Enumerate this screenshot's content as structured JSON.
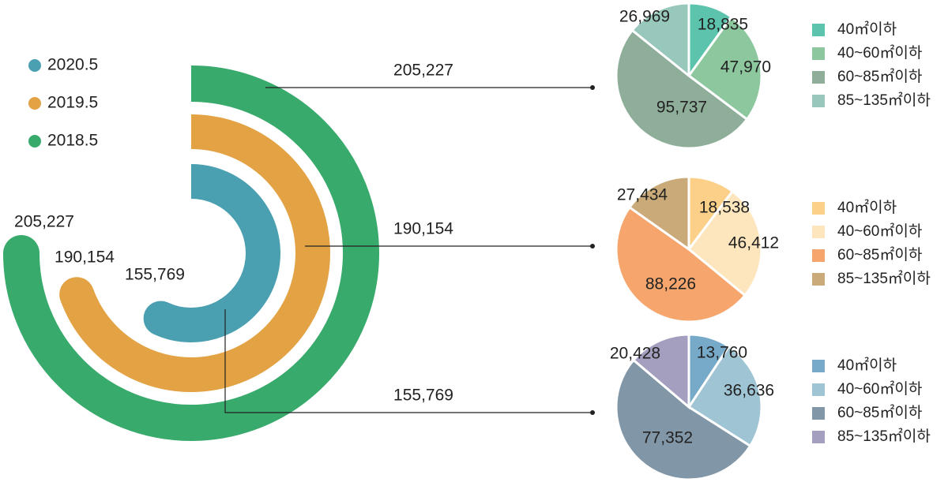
{
  "chart_data": [
    {
      "type": "radial-bar",
      "legend": [
        {
          "label": "2020.5",
          "color": "#4aa0b0"
        },
        {
          "label": "2019.5",
          "color": "#e3a244"
        },
        {
          "label": "2018.5",
          "color": "#38aa6c"
        }
      ],
      "max_value": 205227,
      "series": [
        {
          "name": "2018.5",
          "value": 205227,
          "label": "205,227",
          "color": "#38aa6c"
        },
        {
          "name": "2019.5",
          "value": 190154,
          "label": "190,154",
          "color": "#e3a244"
        },
        {
          "name": "2020.5",
          "value": 155769,
          "label": "155,769",
          "color": "#4aa0b0"
        }
      ]
    },
    {
      "type": "pie",
      "total_label": "205,227",
      "legend_position": "right",
      "slices": [
        {
          "category": "40㎡이하",
          "value": 18835,
          "label": "18,835",
          "color": "#5cc4ac"
        },
        {
          "category": "40~60㎡이하",
          "value": 47970,
          "label": "47,970",
          "color": "#8cc79e"
        },
        {
          "category": "60~85㎡이하",
          "value": 95737,
          "label": "95,737",
          "color": "#8eae99"
        },
        {
          "category": "85~135㎡이하",
          "value": 26969,
          "label": "26,969",
          "color": "#98c7bb"
        }
      ]
    },
    {
      "type": "pie",
      "total_label": "190,154",
      "legend_position": "right",
      "slices": [
        {
          "category": "40㎡이하",
          "value": 18538,
          "label": "18,538",
          "color": "#fcd088"
        },
        {
          "category": "40~60㎡이하",
          "value": 46412,
          "label": "46,412",
          "color": "#fde6bd"
        },
        {
          "category": "60~85㎡이하",
          "value": 88226,
          "label": "88,226",
          "color": "#f6a66d"
        },
        {
          "category": "85~135㎡이하",
          "value": 27434,
          "label": "27,434",
          "color": "#c9aa78"
        }
      ]
    },
    {
      "type": "pie",
      "total_label": "155,769",
      "legend_position": "right",
      "slices": [
        {
          "category": "40㎡이하",
          "value": 13760,
          "label": "13,760",
          "color": "#77aac8"
        },
        {
          "category": "40~60㎡이하",
          "value": 36636,
          "label": "36,636",
          "color": "#9fc4d4"
        },
        {
          "category": "60~85㎡이하",
          "value": 77352,
          "label": "77,352",
          "color": "#8196a6"
        },
        {
          "category": "85~135㎡이하",
          "value": 20428,
          "label": "20,428",
          "color": "#a59fbf"
        }
      ]
    }
  ]
}
